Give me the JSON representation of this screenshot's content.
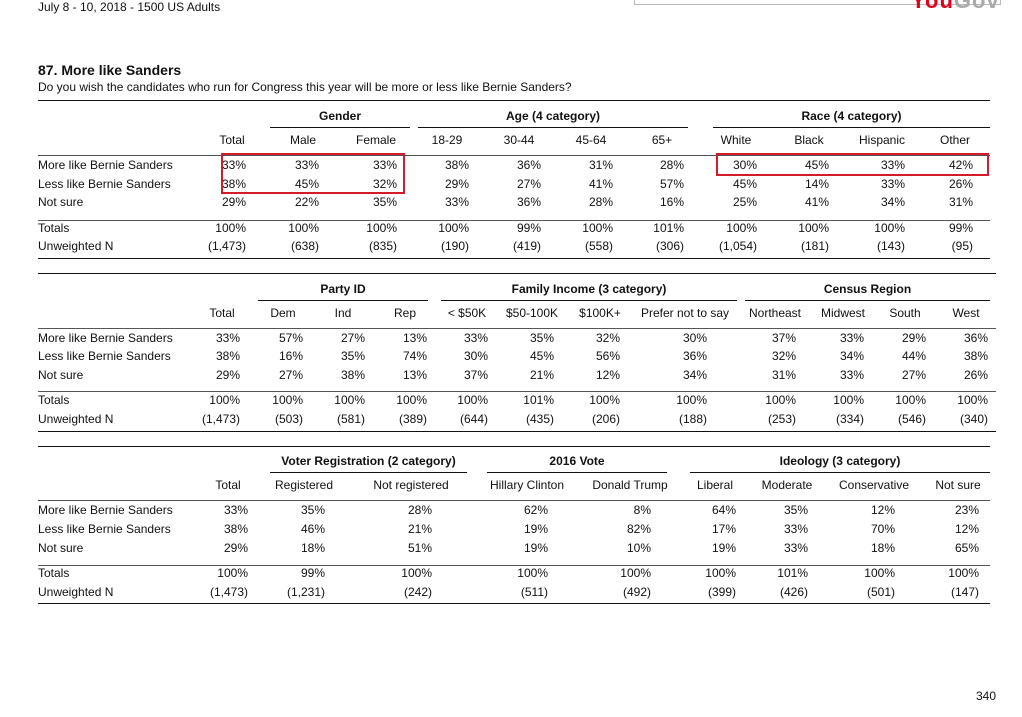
{
  "header": {
    "date_sample": "July 8 - 10, 2018 - 1500 US Adults",
    "logo_you": "You",
    "logo_gov": "Gov"
  },
  "question": {
    "title": "87. More like Sanders",
    "text": "Do you wish the candidates who run for Congress this year will be more or less like Bernie Sanders?"
  },
  "row_labels": [
    "More like Bernie Sanders",
    "Less like Bernie Sanders",
    "Not sure"
  ],
  "total_labels": [
    "Totals",
    "Unweighted N"
  ],
  "tables": [
    {
      "groups": [
        {
          "label": "Gender"
        },
        {
          "label": "Age (4 category)"
        },
        {
          "label": "Race (4 category)"
        }
      ],
      "columns": [
        "Total",
        "Male",
        "Female",
        "18-29",
        "30-44",
        "45-64",
        "65+",
        "White",
        "Black",
        "Hispanic",
        "Other"
      ],
      "rows": [
        [
          "33%",
          "33%",
          "33%",
          "38%",
          "36%",
          "31%",
          "28%",
          "30%",
          "45%",
          "33%",
          "42%"
        ],
        [
          "38%",
          "45%",
          "32%",
          "29%",
          "27%",
          "41%",
          "57%",
          "45%",
          "14%",
          "33%",
          "26%"
        ],
        [
          "29%",
          "22%",
          "35%",
          "33%",
          "36%",
          "28%",
          "16%",
          "25%",
          "41%",
          "34%",
          "31%"
        ]
      ],
      "totals": [
        [
          "100%",
          "100%",
          "100%",
          "100%",
          "99%",
          "100%",
          "101%",
          "100%",
          "100%",
          "100%",
          "99%"
        ],
        [
          "(1,473)",
          "(638)",
          "(835)",
          "(190)",
          "(419)",
          "(558)",
          "(306)",
          "(1,054)",
          "(181)",
          "(143)",
          "(95)"
        ]
      ]
    },
    {
      "groups": [
        {
          "label": "Party ID"
        },
        {
          "label": "Family Income (3 category)"
        },
        {
          "label": "Census Region"
        }
      ],
      "columns": [
        "Total",
        "Dem",
        "Ind",
        "Rep",
        "< $50K",
        "$50-100K",
        "$100K+",
        "Prefer not to say",
        "Northeast",
        "Midwest",
        "South",
        "West"
      ],
      "rows": [
        [
          "33%",
          "57%",
          "27%",
          "13%",
          "33%",
          "35%",
          "32%",
          "30%",
          "37%",
          "33%",
          "29%",
          "36%"
        ],
        [
          "38%",
          "16%",
          "35%",
          "74%",
          "30%",
          "45%",
          "56%",
          "36%",
          "32%",
          "34%",
          "44%",
          "38%"
        ],
        [
          "29%",
          "27%",
          "38%",
          "13%",
          "37%",
          "21%",
          "12%",
          "34%",
          "31%",
          "33%",
          "27%",
          "26%"
        ]
      ],
      "totals": [
        [
          "100%",
          "100%",
          "100%",
          "100%",
          "100%",
          "101%",
          "100%",
          "100%",
          "100%",
          "100%",
          "100%",
          "100%"
        ],
        [
          "(1,473)",
          "(503)",
          "(581)",
          "(389)",
          "(644)",
          "(435)",
          "(206)",
          "(188)",
          "(253)",
          "(334)",
          "(546)",
          "(340)"
        ]
      ]
    },
    {
      "groups": [
        {
          "label": "Voter Registration (2 category)"
        },
        {
          "label": "2016 Vote"
        },
        {
          "label": "Ideology (3 category)"
        }
      ],
      "columns": [
        "Total",
        "Registered",
        "Not registered",
        "Hillary Clinton",
        "Donald Trump",
        "Liberal",
        "Moderate",
        "Conservative",
        "Not sure"
      ],
      "rows": [
        [
          "33%",
          "35%",
          "28%",
          "62%",
          "8%",
          "64%",
          "35%",
          "12%",
          "23%"
        ],
        [
          "38%",
          "46%",
          "21%",
          "19%",
          "82%",
          "17%",
          "33%",
          "70%",
          "12%"
        ],
        [
          "29%",
          "18%",
          "51%",
          "19%",
          "10%",
          "19%",
          "33%",
          "18%",
          "65%"
        ]
      ],
      "totals": [
        [
          "100%",
          "99%",
          "100%",
          "100%",
          "100%",
          "100%",
          "101%",
          "100%",
          "100%"
        ],
        [
          "(1,473)",
          "(1,231)",
          "(242)",
          "(511)",
          "(492)",
          "(399)",
          "(426)",
          "(501)",
          "(147)"
        ]
      ]
    }
  ],
  "highlight_color": "#d6192b",
  "footer": {
    "page_number": "340"
  }
}
